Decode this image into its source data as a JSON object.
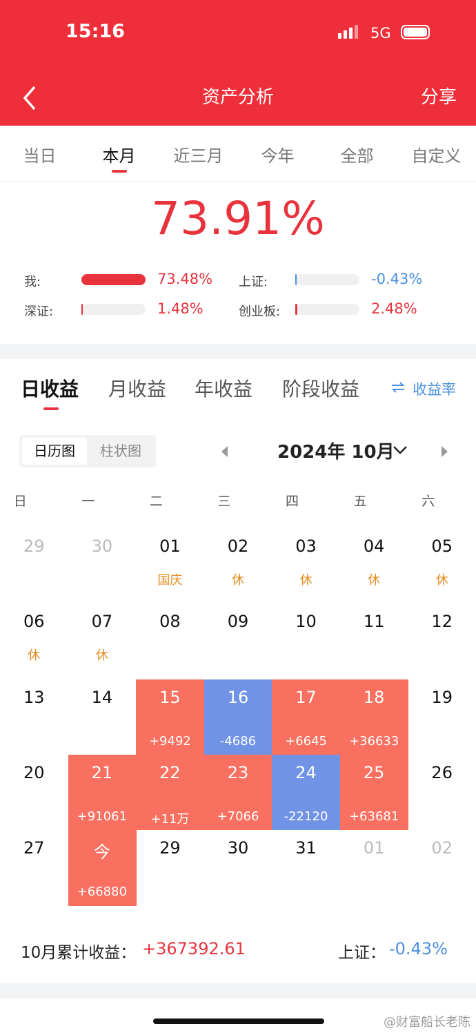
{
  "status_bar": {
    "time": "15:16",
    "network": "5G"
  },
  "nav": {
    "title": "资产分析",
    "action": "分享"
  },
  "period_tabs": {
    "items": [
      "当日",
      "本月",
      "近三月",
      "今年",
      "全部",
      "自定义"
    ],
    "active": 1
  },
  "summary": {
    "value": "73.91%",
    "comparisons": [
      {
        "label": "我:",
        "value": "73.48%"
      },
      {
        "label": "上证:",
        "value": "-0.43%"
      },
      {
        "label": "深证:",
        "value": "1.48%"
      },
      {
        "label": "创业板:",
        "value": "2.48%"
      }
    ]
  },
  "income_tabs": {
    "items": [
      "日收益",
      "月收益",
      "年收益",
      "阶段收益"
    ],
    "active": 0,
    "toggle": "收益率"
  },
  "view_toggle": {
    "items": [
      "日历图",
      "柱状图"
    ],
    "active": 0
  },
  "calendar": {
    "month": "2024年 10月",
    "weekdays": [
      "日",
      "一",
      "二",
      "三",
      "四",
      "五",
      "六"
    ],
    "weeks": [
      [
        {
          "day": "29",
          "muted": true
        },
        {
          "day": "30",
          "muted": true
        },
        {
          "day": "01",
          "holiday": "国庆"
        },
        {
          "day": "02",
          "holiday": "休"
        },
        {
          "day": "03",
          "holiday": "休"
        },
        {
          "day": "04",
          "holiday": "休"
        },
        {
          "day": "05",
          "holiday": "休"
        }
      ],
      [
        {
          "day": "06",
          "holiday": "休"
        },
        {
          "day": "07",
          "holiday": "休"
        },
        {
          "day": "08"
        },
        {
          "day": "09"
        },
        {
          "day": "10"
        },
        {
          "day": "11"
        },
        {
          "day": "12"
        }
      ],
      [
        {
          "day": "13"
        },
        {
          "day": "14"
        },
        {
          "day": "15",
          "profit": "+9492"
        },
        {
          "day": "16",
          "profit": "-4686"
        },
        {
          "day": "17",
          "profit": "+6645"
        },
        {
          "day": "18",
          "profit": "+36633"
        },
        {
          "day": "19"
        }
      ],
      [
        {
          "day": "20"
        },
        {
          "day": "21",
          "profit": "+91061"
        },
        {
          "day": "22",
          "profit": "+11万"
        },
        {
          "day": "23",
          "profit": "+7066"
        },
        {
          "day": "24",
          "profit": "-22120"
        },
        {
          "day": "25",
          "profit": "+63681"
        },
        {
          "day": "26"
        }
      ],
      [
        {
          "day": "27"
        },
        {
          "day": "今",
          "profit": "+66880"
        },
        {
          "day": "29"
        },
        {
          "day": "30"
        },
        {
          "day": "31"
        },
        {
          "day": "01",
          "muted": true
        },
        {
          "day": "02",
          "muted": true
        }
      ]
    ]
  },
  "footer": {
    "label": "10月累计收益：",
    "value": "+367392.61",
    "index_label": "上证：",
    "index_value": "-0.43%"
  },
  "watermark": "@财富船长老陈"
}
